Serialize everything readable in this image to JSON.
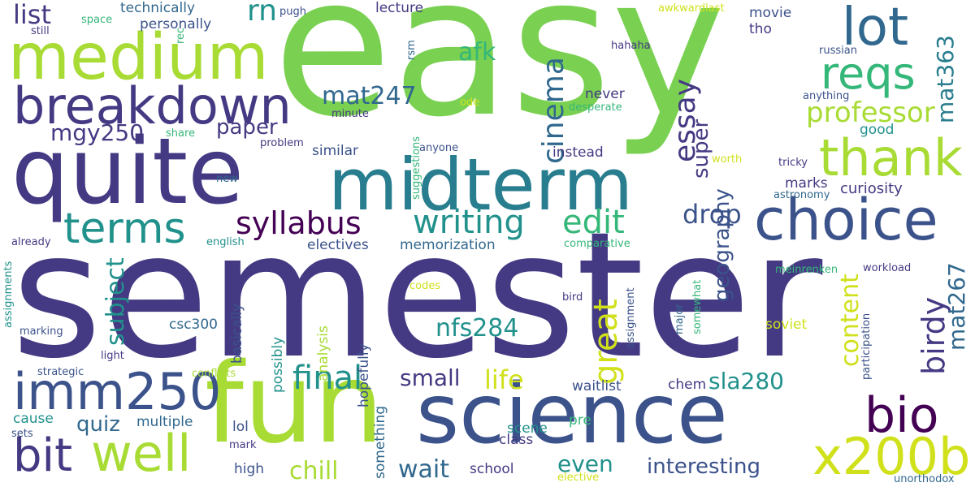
{
  "palette": {
    "navy": "#443a83",
    "indigo": "#3b528b",
    "blue": "#31688e",
    "teal": "#287d8e",
    "sea": "#21918c",
    "green": "#35b779",
    "lime": "#7ad151",
    "yellowgreen": "#a8db34",
    "yellow": "#d0e11c",
    "purple": "#440154"
  },
  "words": [
    {
      "text": "semester",
      "color": "#443a83",
      "vertical": false
    },
    {
      "text": "easy",
      "color": "#7ad151",
      "vertical": false
    },
    {
      "text": "quite",
      "color": "#443a83",
      "vertical": false
    },
    {
      "text": "fun",
      "color": "#a8db34",
      "vertical": false
    },
    {
      "text": "science",
      "color": "#3b528b",
      "vertical": false
    },
    {
      "text": "midterm",
      "color": "#287d8e",
      "vertical": false
    },
    {
      "text": "medium",
      "color": "#a8db34",
      "vertical": false
    },
    {
      "text": "choice",
      "color": "#3b528b",
      "vertical": false
    },
    {
      "text": "breakdown",
      "color": "#443a83",
      "vertical": false
    },
    {
      "text": "imm250",
      "color": "#3b528b",
      "vertical": false
    },
    {
      "text": "lot",
      "color": "#31688e",
      "vertical": false
    },
    {
      "text": "thank",
      "color": "#a8db34",
      "vertical": false
    },
    {
      "text": "x200b",
      "color": "#d0e11c",
      "vertical": false
    },
    {
      "text": "well",
      "color": "#a8db34",
      "vertical": false
    },
    {
      "text": "bio",
      "color": "#440154",
      "vertical": false
    },
    {
      "text": "bit",
      "color": "#443a83",
      "vertical": false
    },
    {
      "text": "terms",
      "color": "#21918c",
      "vertical": false
    },
    {
      "text": "reqs",
      "color": "#35b779",
      "vertical": false
    },
    {
      "text": "writing",
      "color": "#21918c",
      "vertical": false
    },
    {
      "text": "syllabus",
      "color": "#440154",
      "vertical": false
    },
    {
      "text": "edit",
      "color": "#35b779",
      "vertical": false
    },
    {
      "text": "final",
      "color": "#21918c",
      "vertical": false
    },
    {
      "text": "cinema",
      "color": "#31688e",
      "vertical": true
    },
    {
      "text": "essay",
      "color": "#443a83",
      "vertical": true
    },
    {
      "text": "great",
      "color": "#d0e11c",
      "vertical": true
    },
    {
      "text": "birdy",
      "color": "#443a83",
      "vertical": true
    },
    {
      "text": "professor",
      "color": "#a8db34",
      "vertical": false
    },
    {
      "text": "rn",
      "color": "#21918c",
      "vertical": false
    },
    {
      "text": "list",
      "color": "#443a83",
      "vertical": false
    },
    {
      "text": "mat363",
      "color": "#287d8e",
      "vertical": true
    },
    {
      "text": "mat247",
      "color": "#31688e",
      "vertical": false
    },
    {
      "text": "afk",
      "color": "#35b779",
      "vertical": false
    },
    {
      "text": "paper",
      "color": "#443a83",
      "vertical": false
    },
    {
      "text": "mgy250",
      "color": "#443a83",
      "vertical": false
    },
    {
      "text": "drop",
      "color": "#3b528b",
      "vertical": false
    },
    {
      "text": "super",
      "color": "#443a83",
      "vertical": true
    },
    {
      "text": "geography",
      "color": "#3b528b",
      "vertical": true
    },
    {
      "text": "content",
      "color": "#d0e11c",
      "vertical": true
    },
    {
      "text": "mat267",
      "color": "#31688e",
      "vertical": true
    },
    {
      "text": "subject",
      "color": "#21918c",
      "vertical": true
    },
    {
      "text": "life",
      "color": "#d0e11c",
      "vertical": false
    },
    {
      "text": "small",
      "color": "#443a83",
      "vertical": false
    },
    {
      "text": "nfs284",
      "color": "#21918c",
      "vertical": false
    },
    {
      "text": "sla280",
      "color": "#21918c",
      "vertical": false
    },
    {
      "text": "quiz",
      "color": "#31688e",
      "vertical": false
    },
    {
      "text": "wait",
      "color": "#31688e",
      "vertical": false
    },
    {
      "text": "chill",
      "color": "#a8db34",
      "vertical": false
    },
    {
      "text": "even",
      "color": "#21918c",
      "vertical": false
    },
    {
      "text": "interesting",
      "color": "#3b528b",
      "vertical": false
    },
    {
      "text": "curiosity",
      "color": "#443a83",
      "vertical": false
    },
    {
      "text": "technically",
      "color": "#31688e",
      "vertical": false
    },
    {
      "text": "personally",
      "color": "#3b528b",
      "vertical": false
    },
    {
      "text": "space",
      "color": "#35b779",
      "vertical": false
    },
    {
      "text": "still",
      "color": "#443a83",
      "vertical": false
    },
    {
      "text": "pugh",
      "color": "#3b528b",
      "vertical": false
    },
    {
      "text": "lecture",
      "color": "#443a83",
      "vertical": false
    },
    {
      "text": "awkwardlast",
      "color": "#d0e11c",
      "vertical": false
    },
    {
      "text": "movie",
      "color": "#3b528b",
      "vertical": false
    },
    {
      "text": "tho",
      "color": "#443a83",
      "vertical": false
    },
    {
      "text": "hahaha",
      "color": "#443a83",
      "vertical": false
    },
    {
      "text": "russian",
      "color": "#3b528b",
      "vertical": false
    },
    {
      "text": "rec",
      "color": "#35b779",
      "vertical": true
    },
    {
      "text": "rsm",
      "color": "#31688e",
      "vertical": true
    },
    {
      "text": "ode",
      "color": "#d0e11c",
      "vertical": false
    },
    {
      "text": "never",
      "color": "#443a83",
      "vertical": false
    },
    {
      "text": "desperate",
      "color": "#35b779",
      "vertical": false
    },
    {
      "text": "anything",
      "color": "#3b528b",
      "vertical": false
    },
    {
      "text": "minute",
      "color": "#443a83",
      "vertical": false
    },
    {
      "text": "share",
      "color": "#35b779",
      "vertical": false
    },
    {
      "text": "problem",
      "color": "#443a83",
      "vertical": false
    },
    {
      "text": "suggestions",
      "color": "#35b779",
      "vertical": true
    },
    {
      "text": "anyone",
      "color": "#3b528b",
      "vertical": false
    },
    {
      "text": "good",
      "color": "#21918c",
      "vertical": false
    },
    {
      "text": "similar",
      "color": "#3b528b",
      "vertical": false
    },
    {
      "text": "instead",
      "color": "#443a83",
      "vertical": false
    },
    {
      "text": "worth",
      "color": "#d0e11c",
      "vertical": false
    },
    {
      "text": "tricky",
      "color": "#443a83",
      "vertical": false
    },
    {
      "text": "new",
      "color": "#31688e",
      "vertical": false
    },
    {
      "text": "marks",
      "color": "#443a83",
      "vertical": false
    },
    {
      "text": "astronomy",
      "color": "#31688e",
      "vertical": false
    },
    {
      "text": "english",
      "color": "#21918c",
      "vertical": false
    },
    {
      "text": "already",
      "color": "#443a83",
      "vertical": false
    },
    {
      "text": "electives",
      "color": "#3b528b",
      "vertical": false
    },
    {
      "text": "memorization",
      "color": "#31688e",
      "vertical": false
    },
    {
      "text": "comparative",
      "color": "#35b779",
      "vertical": false
    },
    {
      "text": "meinrenken",
      "color": "#35b779",
      "vertical": false
    },
    {
      "text": "workload",
      "color": "#443a83",
      "vertical": false
    },
    {
      "text": "assignments",
      "color": "#21918c",
      "vertical": true
    },
    {
      "text": "codes",
      "color": "#d0e11c",
      "vertical": false
    },
    {
      "text": "bird",
      "color": "#443a83",
      "vertical": false
    },
    {
      "text": "soviet",
      "color": "#d0e11c",
      "vertical": false
    },
    {
      "text": "participation",
      "color": "#3b528b",
      "vertical": true
    },
    {
      "text": "marking",
      "color": "#3b528b",
      "vertical": false
    },
    {
      "text": "csc300",
      "color": "#31688e",
      "vertical": false
    },
    {
      "text": "light",
      "color": "#443a83",
      "vertical": false
    },
    {
      "text": "strategic",
      "color": "#3b528b",
      "vertical": false
    },
    {
      "text": "conflicts",
      "color": "#a8db34",
      "vertical": false
    },
    {
      "text": "basically",
      "color": "#3b528b",
      "vertical": true
    },
    {
      "text": "possibly",
      "color": "#21918c",
      "vertical": true
    },
    {
      "text": "analysis",
      "color": "#a8db34",
      "vertical": true
    },
    {
      "text": "hopefully",
      "color": "#3b528b",
      "vertical": true
    },
    {
      "text": "assignment",
      "color": "#3b528b",
      "vertical": true
    },
    {
      "text": "major",
      "color": "#31688e",
      "vertical": true
    },
    {
      "text": "somewhat",
      "color": "#35b779",
      "vertical": true
    },
    {
      "text": "waitlist",
      "color": "#3b528b",
      "vertical": false
    },
    {
      "text": "chem",
      "color": "#443a83",
      "vertical": false
    },
    {
      "text": "cause",
      "color": "#21918c",
      "vertical": false
    },
    {
      "text": "multiple",
      "color": "#31688e",
      "vertical": false
    },
    {
      "text": "sets",
      "color": "#3b528b",
      "vertical": false
    },
    {
      "text": "mark",
      "color": "#443a83",
      "vertical": false
    },
    {
      "text": "lol",
      "color": "#3b528b",
      "vertical": false
    },
    {
      "text": "high",
      "color": "#3b528b",
      "vertical": false
    },
    {
      "text": "something",
      "color": "#31688e",
      "vertical": true
    },
    {
      "text": "class",
      "color": "#443a83",
      "vertical": false
    },
    {
      "text": "scene",
      "color": "#21918c",
      "vertical": false
    },
    {
      "text": "pre",
      "color": "#35b779",
      "vertical": false
    },
    {
      "text": "school",
      "color": "#443a83",
      "vertical": false
    },
    {
      "text": "elective",
      "color": "#d0e11c",
      "vertical": false
    },
    {
      "text": "unorthodox",
      "color": "#31688e",
      "vertical": false
    }
  ]
}
